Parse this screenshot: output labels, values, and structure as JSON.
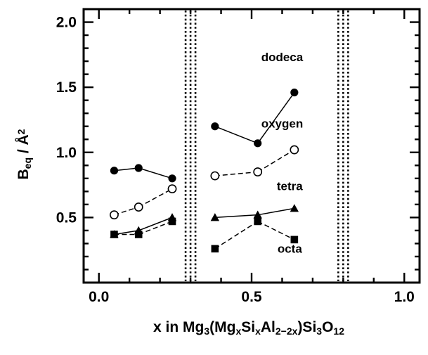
{
  "chart_data": {
    "type": "line",
    "xlabel": {
      "parts": [
        {
          "t": "x in Mg",
          "s": "n"
        },
        {
          "t": "3",
          "s": "sub"
        },
        {
          "t": "(Mg",
          "s": "n"
        },
        {
          "t": "x",
          "s": "sub"
        },
        {
          "t": "Si",
          "s": "n"
        },
        {
          "t": "x",
          "s": "sub"
        },
        {
          "t": "Al",
          "s": "n"
        },
        {
          "t": "2−2x",
          "s": "sub"
        },
        {
          "t": ")Si",
          "s": "n"
        },
        {
          "t": "3",
          "s": "sub"
        },
        {
          "t": "O",
          "s": "n"
        },
        {
          "t": "12",
          "s": "sub"
        }
      ]
    },
    "ylabel": {
      "parts": [
        {
          "t": "B",
          "s": "n"
        },
        {
          "t": "eq",
          "s": "sub"
        },
        {
          "t": " / Å",
          "s": "n"
        },
        {
          "t": "2",
          "s": "sup"
        }
      ]
    },
    "xlim": [
      -0.05,
      1.05
    ],
    "ylim": [
      0.0,
      2.1
    ],
    "x_ticks": [
      {
        "v": 0.0,
        "label": "0.0"
      },
      {
        "v": 0.5,
        "label": "0.5"
      },
      {
        "v": 1.0,
        "label": "1.0"
      }
    ],
    "y_ticks": [
      {
        "v": 0.5,
        "label": "0.5"
      },
      {
        "v": 1.0,
        "label": "1.0"
      },
      {
        "v": 1.5,
        "label": "1.5"
      },
      {
        "v": 2.0,
        "label": "2.0"
      }
    ],
    "x_minor_step": 0.1,
    "y_minor_step": 0.1,
    "phase_boundaries": [
      0.3,
      0.8
    ],
    "series": [
      {
        "name": "dodeca",
        "marker": "filled-circle",
        "line": "solid",
        "label_at": [
          0.6,
          1.7
        ],
        "segments": [
          [
            [
              0.05,
              0.86
            ],
            [
              0.13,
              0.88
            ],
            [
              0.24,
              0.8
            ]
          ],
          [
            [
              0.38,
              1.2
            ],
            [
              0.52,
              1.07
            ],
            [
              0.64,
              1.46
            ]
          ]
        ]
      },
      {
        "name": "oxygen",
        "marker": "open-circle",
        "line": "dashed",
        "label_at": [
          0.6,
          1.19
        ],
        "segments": [
          [
            [
              0.05,
              0.52
            ],
            [
              0.13,
              0.58
            ],
            [
              0.24,
              0.72
            ]
          ],
          [
            [
              0.38,
              0.82
            ],
            [
              0.52,
              0.85
            ],
            [
              0.64,
              1.02
            ]
          ]
        ]
      },
      {
        "name": "tetra",
        "marker": "filled-triangle",
        "line": "solid",
        "label_at": [
          0.625,
          0.71
        ],
        "segments": [
          [
            [
              0.05,
              0.37
            ],
            [
              0.13,
              0.4
            ],
            [
              0.24,
              0.5
            ]
          ],
          [
            [
              0.38,
              0.5
            ],
            [
              0.52,
              0.52
            ],
            [
              0.64,
              0.57
            ]
          ]
        ]
      },
      {
        "name": "octa",
        "marker": "filled-square",
        "line": "dashed",
        "label_at": [
          0.625,
          0.23
        ],
        "segments": [
          [
            [
              0.05,
              0.37
            ],
            [
              0.13,
              0.37
            ],
            [
              0.24,
              0.47
            ]
          ],
          [
            [
              0.38,
              0.26
            ],
            [
              0.52,
              0.47
            ],
            [
              0.64,
              0.33
            ]
          ]
        ]
      }
    ]
  }
}
